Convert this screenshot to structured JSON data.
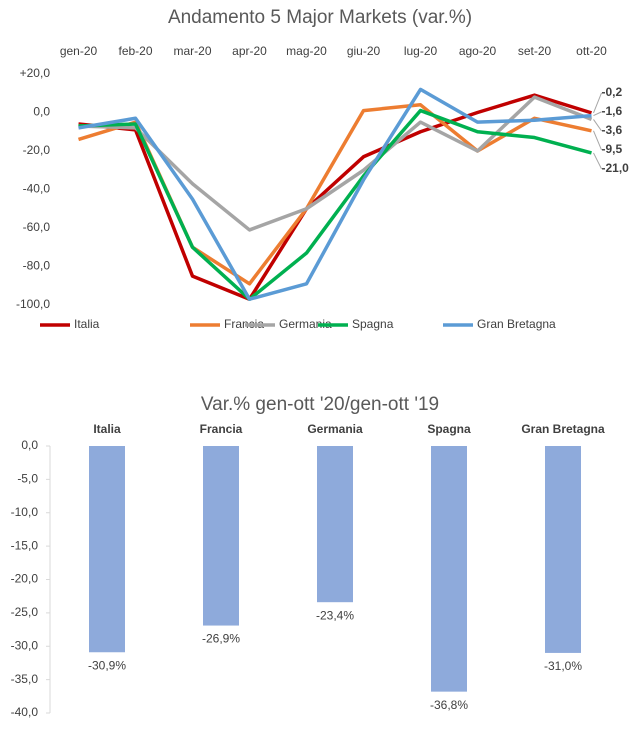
{
  "chart_data": [
    {
      "type": "line",
      "title": "Andamento 5 Major Markets (var.%)",
      "categories": [
        "gen-20",
        "feb-20",
        "mar-20",
        "apr-20",
        "mag-20",
        "giu-20",
        "lug-20",
        "ago-20",
        "set-20",
        "ott-20"
      ],
      "series": [
        {
          "name": "Italia",
          "color": "#c00000",
          "values": [
            -6,
            -9,
            -85,
            -97,
            -50,
            -23,
            -10,
            0,
            9,
            -0.2
          ],
          "value_labels": [
            null,
            null,
            null,
            null,
            null,
            null,
            null,
            null,
            null,
            "-0,2"
          ]
        },
        {
          "name": "Francia",
          "color": "#ed7d31",
          "values": [
            -14,
            -5,
            -70,
            -89,
            -50,
            1,
            4,
            -20,
            -3,
            -9.5
          ],
          "value_labels": [
            null,
            null,
            null,
            null,
            null,
            null,
            null,
            null,
            null,
            "-9,5"
          ]
        },
        {
          "name": "Germania",
          "color": "#a5a5a5",
          "values": [
            -7,
            -8,
            -37,
            -61,
            -50,
            -30,
            -5,
            -20,
            8,
            -3.6
          ],
          "value_labels": [
            null,
            null,
            null,
            null,
            null,
            null,
            null,
            null,
            null,
            "-3,6"
          ]
        },
        {
          "name": "Spagna",
          "color": "#00b050",
          "values": [
            -7,
            -6,
            -70,
            -97,
            -73,
            -33,
            1,
            -10,
            -13,
            -21.0
          ],
          "value_labels": [
            null,
            null,
            null,
            null,
            null,
            null,
            null,
            null,
            null,
            "-21,0"
          ]
        },
        {
          "name": "Gran Bretagna",
          "color": "#5b9bd5",
          "values": [
            -8,
            -3,
            -45,
            -97,
            -89,
            -35,
            12,
            -5,
            -4,
            -1.6
          ],
          "value_labels": [
            null,
            null,
            null,
            null,
            null,
            null,
            null,
            null,
            null,
            "-1,6"
          ]
        }
      ],
      "ylim": [
        -100,
        20
      ],
      "yticks": [
        {
          "value": 20,
          "label": "+20,0"
        },
        {
          "value": 0,
          "label": "0,0"
        },
        {
          "value": -20,
          "label": "-20,0"
        },
        {
          "value": -40,
          "label": "-40,0"
        },
        {
          "value": -60,
          "label": "-60,0"
        },
        {
          "value": -80,
          "label": "-80,0"
        },
        {
          "value": -100,
          "label": "-100,0"
        }
      ],
      "legend": "bottom",
      "grid": false
    },
    {
      "type": "bar",
      "title": "Var.% gen-ott '20/gen-ott '19",
      "categories": [
        "Italia",
        "Francia",
        "Germania",
        "Spagna",
        "Gran Bretagna"
      ],
      "values": [
        -30.9,
        -26.9,
        -23.4,
        -36.8,
        -31.0
      ],
      "value_labels": [
        "-30,9%",
        "-26,9%",
        "-23,4%",
        "-36,8%",
        "-31,0%"
      ],
      "color": "#8eaadb",
      "label_color": "#ff0000",
      "category_color": "#1f4e79",
      "ylim": [
        -40,
        0
      ],
      "yticks": [
        {
          "value": 0,
          "label": "0,0"
        },
        {
          "value": -5,
          "label": "-5,0"
        },
        {
          "value": -10,
          "label": "-10,0"
        },
        {
          "value": -15,
          "label": "-15,0"
        },
        {
          "value": -20,
          "label": "-20,0"
        },
        {
          "value": -25,
          "label": "-25,0"
        },
        {
          "value": -30,
          "label": "-30,0"
        },
        {
          "value": -35,
          "label": "-35,0"
        },
        {
          "value": -40,
          "label": "-40,0"
        }
      ],
      "grid": false
    }
  ]
}
